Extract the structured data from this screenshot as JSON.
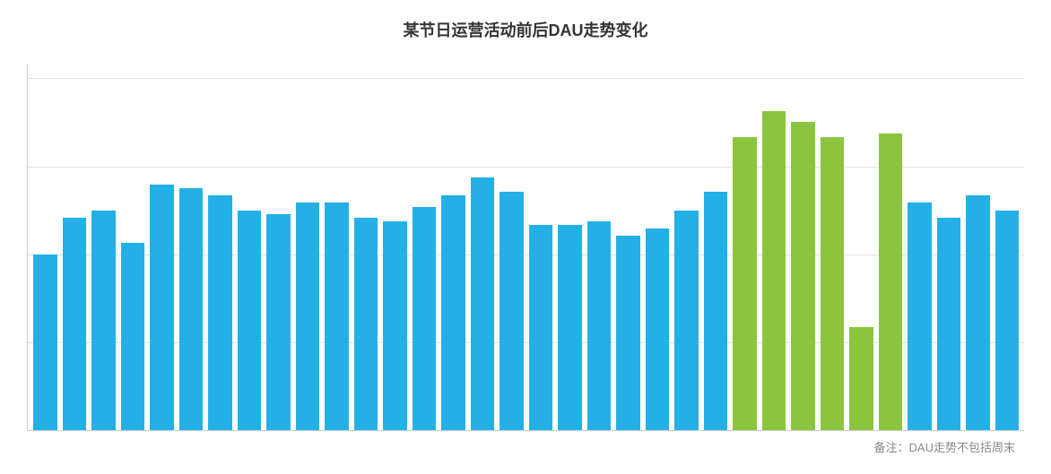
{
  "chart": {
    "type": "bar",
    "title": "某节日运营活动前后DAU走势变化",
    "footnote": "备注：DAU走势不包括周末",
    "title_fontsize": 18,
    "title_color": "#333333",
    "footnote_fontsize": 13,
    "footnote_color": "#888888",
    "background_color": "#ffffff",
    "grid_color": "#e0e0e0",
    "axis_color": "#cccccc",
    "bar_gap": 6,
    "colors": {
      "normal": "#24b0e6",
      "highlight": "#8bc53f"
    },
    "ylim": [
      0,
      100
    ],
    "gridlines_at": [
      24,
      48,
      72,
      96
    ],
    "bars": [
      {
        "value": 48,
        "highlight": false
      },
      {
        "value": 58,
        "highlight": false
      },
      {
        "value": 60,
        "highlight": false
      },
      {
        "value": 51,
        "highlight": false
      },
      {
        "value": 67,
        "highlight": false
      },
      {
        "value": 66,
        "highlight": false
      },
      {
        "value": 64,
        "highlight": false
      },
      {
        "value": 60,
        "highlight": false
      },
      {
        "value": 59,
        "highlight": false
      },
      {
        "value": 62,
        "highlight": false
      },
      {
        "value": 62,
        "highlight": false
      },
      {
        "value": 58,
        "highlight": false
      },
      {
        "value": 57,
        "highlight": false
      },
      {
        "value": 61,
        "highlight": false
      },
      {
        "value": 64,
        "highlight": false
      },
      {
        "value": 69,
        "highlight": false
      },
      {
        "value": 65,
        "highlight": false
      },
      {
        "value": 56,
        "highlight": false
      },
      {
        "value": 56,
        "highlight": false
      },
      {
        "value": 57,
        "highlight": false
      },
      {
        "value": 53,
        "highlight": false
      },
      {
        "value": 55,
        "highlight": false
      },
      {
        "value": 60,
        "highlight": false
      },
      {
        "value": 65,
        "highlight": false
      },
      {
        "value": 80,
        "highlight": true
      },
      {
        "value": 87,
        "highlight": true
      },
      {
        "value": 84,
        "highlight": true
      },
      {
        "value": 80,
        "highlight": true
      },
      {
        "value": 28,
        "highlight": true
      },
      {
        "value": 81,
        "highlight": true
      },
      {
        "value": 62,
        "highlight": false
      },
      {
        "value": 58,
        "highlight": false
      },
      {
        "value": 64,
        "highlight": false
      },
      {
        "value": 60,
        "highlight": false
      }
    ]
  }
}
